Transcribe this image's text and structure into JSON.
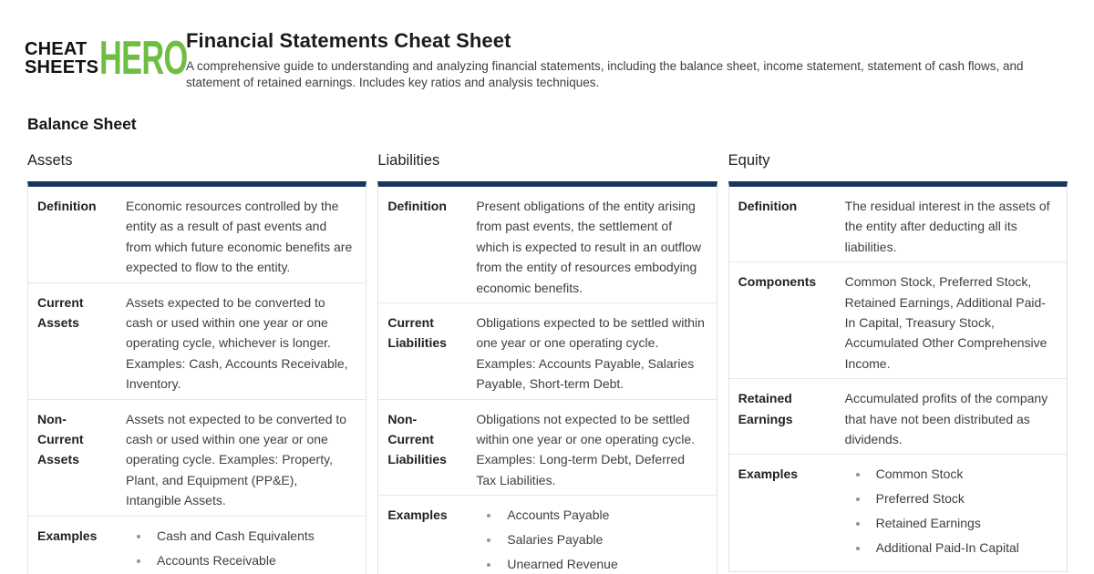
{
  "logo": {
    "word1": "CHEAT",
    "word2": "SHEETS",
    "word3": "HERO"
  },
  "header": {
    "title": "Financial Statements Cheat Sheet",
    "description": "A comprehensive guide to understanding and analyzing financial statements, including the balance sheet, income statement, statement of cash flows, and statement of retained earnings. Includes key ratios and analysis techniques."
  },
  "section": {
    "title": "Balance Sheet"
  },
  "colors": {
    "brand_green": "#6FBE44",
    "table_accent_navy": "#17375E",
    "label_text": "#202124",
    "body_text": "#3C4043"
  },
  "columns": [
    {
      "title": "Assets",
      "rows": [
        {
          "label": "Definition",
          "text": "Economic resources controlled by the entity as a result of past events and from which future economic benefits are expected to flow to the entity."
        },
        {
          "label": "Current Assets",
          "text": "Assets expected to be converted to cash or used within one year or one operating cycle, whichever is longer. Examples: Cash, Accounts Receivable, Inventory."
        },
        {
          "label": "Non-Current Assets",
          "text": "Assets not expected to be converted to cash or used within one year or one operating cycle. Examples: Property, Plant, and Equipment (PP&E), Intangible Assets."
        },
        {
          "label": "Examples",
          "bullets": [
            "Cash and Cash Equivalents",
            "Accounts Receivable"
          ]
        }
      ]
    },
    {
      "title": "Liabilities",
      "rows": [
        {
          "label": "Definition",
          "text": "Present obligations of the entity arising from past events, the settlement of which is expected to result in an outflow from the entity of resources embodying economic benefits."
        },
        {
          "label": "Current Liabilities",
          "text": "Obligations expected to be settled within one year or one operating cycle. Examples: Accounts Payable, Salaries Payable, Short-term Debt."
        },
        {
          "label": "Non-Current Liabilities",
          "text": "Obligations not expected to be settled within one year or one operating cycle. Examples: Long-term Debt, Deferred Tax Liabilities."
        },
        {
          "label": "Examples",
          "bullets": [
            "Accounts Payable",
            "Salaries Payable",
            "Unearned Revenue"
          ]
        }
      ]
    },
    {
      "title": "Equity",
      "rows": [
        {
          "label": "Definition",
          "text": "The residual interest in the assets of the entity after deducting all its liabilities."
        },
        {
          "label": "Components",
          "text": "Common Stock, Preferred Stock, Retained Earnings, Additional Paid-In Capital, Treasury Stock, Accumulated Other Comprehensive Income."
        },
        {
          "label": "Retained Earnings",
          "text": "Accumulated profits of the company that have not been distributed as dividends."
        },
        {
          "label": "Examples",
          "bullets": [
            "Common Stock",
            "Preferred Stock",
            "Retained Earnings",
            "Additional Paid-In Capital"
          ]
        }
      ]
    }
  ]
}
